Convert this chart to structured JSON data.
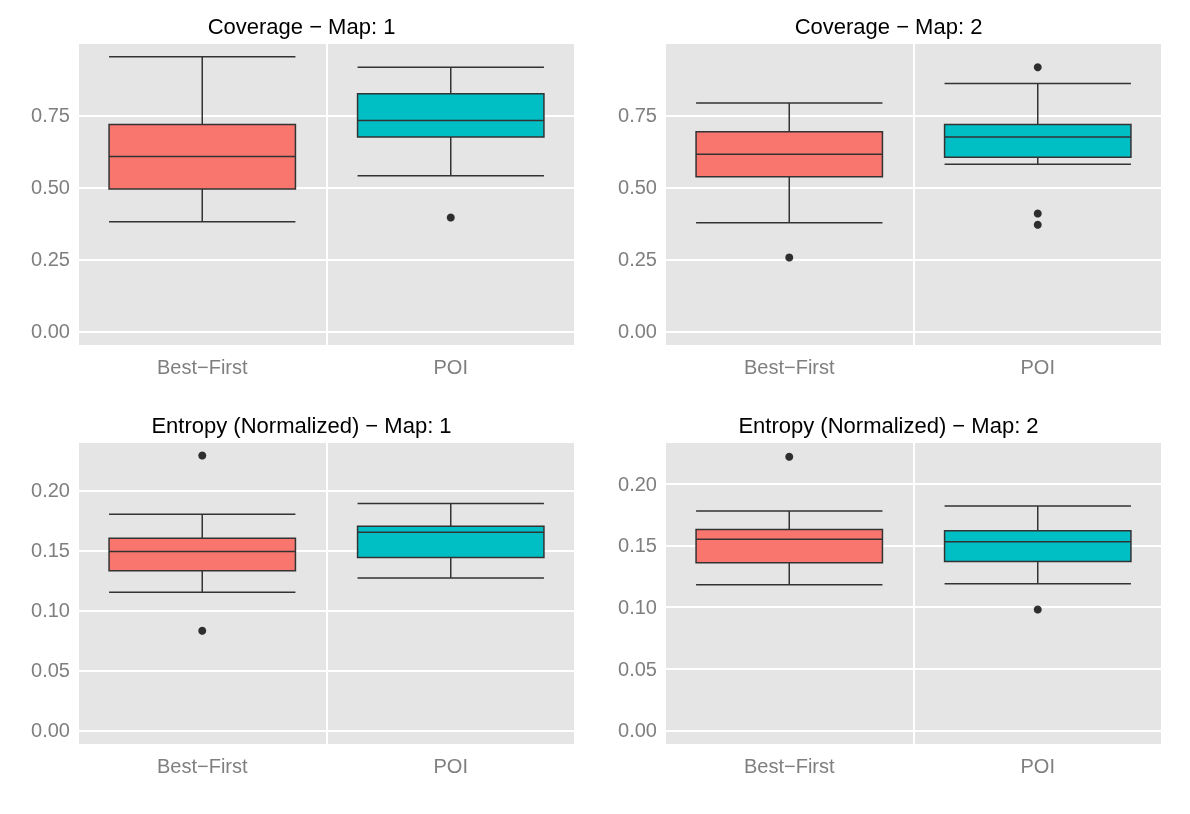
{
  "chart_data": [
    {
      "type": "box",
      "title": "Coverage − Map: 1",
      "categories": [
        "Best−First",
        "POI"
      ],
      "colors": [
        "#f8766d",
        "#00bfc4"
      ],
      "grid": true,
      "ylim": [
        -0.0475,
        0.9975
      ],
      "yticks": [
        {
          "value": 0,
          "label": "0.00"
        },
        {
          "value": 0.25,
          "label": "0.25"
        },
        {
          "value": 0.5,
          "label": "0.50"
        },
        {
          "value": 0.75,
          "label": "0.75"
        }
      ],
      "boxes": [
        {
          "low": 0.38,
          "q1": 0.494,
          "median": 0.607,
          "q3": 0.718,
          "high": 0.953
        },
        {
          "low": 0.54,
          "q1": 0.675,
          "median": 0.732,
          "q3": 0.825,
          "high": 0.917,
          "outliers": [
            0.395
          ]
        }
      ]
    },
    {
      "type": "box",
      "title": "Coverage − Map: 2",
      "categories": [
        "Best−First",
        "POI"
      ],
      "colors": [
        "#f8766d",
        "#00bfc4"
      ],
      "grid": true,
      "ylim": [
        -0.0475,
        0.9975
      ],
      "yticks": [
        {
          "value": 0,
          "label": "0.00"
        },
        {
          "value": 0.25,
          "label": "0.25"
        },
        {
          "value": 0.5,
          "label": "0.50"
        },
        {
          "value": 0.75,
          "label": "0.75"
        }
      ],
      "boxes": [
        {
          "low": 0.377,
          "q1": 0.537,
          "median": 0.615,
          "q3": 0.693,
          "high": 0.793,
          "outliers": [
            0.256
          ]
        },
        {
          "low": 0.58,
          "q1": 0.604,
          "median": 0.675,
          "q3": 0.718,
          "high": 0.86,
          "outliers": [
            0.917,
            0.409,
            0.37
          ]
        }
      ]
    },
    {
      "type": "box",
      "title": "Entropy (Normalized) − Map: 1",
      "categories": [
        "Best−First",
        "POI"
      ],
      "colors": [
        "#f8766d",
        "#00bfc4"
      ],
      "grid": true,
      "ylim": [
        -0.0114,
        0.2394
      ],
      "yticks": [
        {
          "value": 0,
          "label": "0.00"
        },
        {
          "value": 0.05,
          "label": "0.05"
        },
        {
          "value": 0.1,
          "label": "0.10"
        },
        {
          "value": 0.15,
          "label": "0.15"
        },
        {
          "value": 0.2,
          "label": "0.20"
        }
      ],
      "boxes": [
        {
          "low": 0.115,
          "q1": 0.133,
          "median": 0.149,
          "q3": 0.16,
          "high": 0.18,
          "outliers": [
            0.229,
            0.083
          ]
        },
        {
          "low": 0.127,
          "q1": 0.144,
          "median": 0.165,
          "q3": 0.17,
          "high": 0.189
        }
      ]
    },
    {
      "type": "box",
      "title": "Entropy (Normalized) − Map: 2",
      "categories": [
        "Best−First",
        "POI"
      ],
      "colors": [
        "#f8766d",
        "#00bfc4"
      ],
      "grid": true,
      "ylim": [
        -0.0111,
        0.2331
      ],
      "yticks": [
        {
          "value": 0,
          "label": "0.00"
        },
        {
          "value": 0.05,
          "label": "0.05"
        },
        {
          "value": 0.1,
          "label": "0.10"
        },
        {
          "value": 0.15,
          "label": "0.15"
        },
        {
          "value": 0.2,
          "label": "0.20"
        }
      ],
      "boxes": [
        {
          "low": 0.118,
          "q1": 0.136,
          "median": 0.155,
          "q3": 0.163,
          "high": 0.178,
          "outliers": [
            0.222
          ]
        },
        {
          "low": 0.119,
          "q1": 0.137,
          "median": 0.153,
          "q3": 0.162,
          "high": 0.182,
          "outliers": [
            0.098
          ]
        }
      ]
    }
  ]
}
